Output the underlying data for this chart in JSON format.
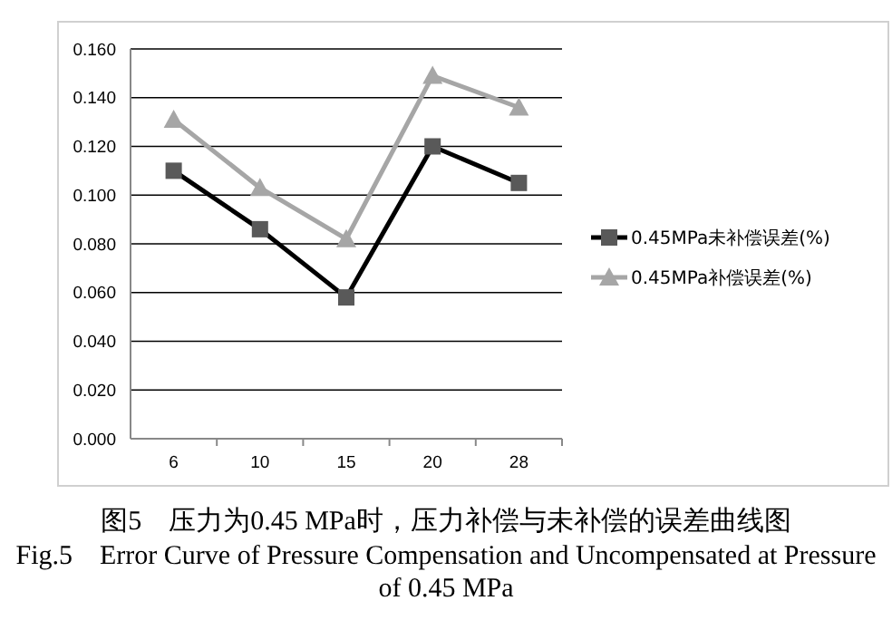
{
  "chart_data": {
    "type": "line",
    "categories": [
      "6",
      "10",
      "15",
      "20",
      "28"
    ],
    "series": [
      {
        "name": "0.45MPa未补偿误差(%)",
        "color": "#000000",
        "values": [
          0.11,
          0.086,
          0.058,
          0.12,
          0.105
        ],
        "marker": "square"
      },
      {
        "name": "0.45MPa补偿误差(%)",
        "color": "#a6a6a6",
        "values": [
          0.131,
          0.103,
          0.082,
          0.149,
          0.136
        ],
        "marker": "triangle"
      }
    ],
    "ylim": [
      0,
      0.16
    ],
    "yticks": [
      {
        "value": 0,
        "label": "0.000"
      },
      {
        "value": 0.02,
        "label": "0.020"
      },
      {
        "value": 0.04,
        "label": "0.040"
      },
      {
        "value": 0.06,
        "label": "0.060"
      },
      {
        "value": 0.08,
        "label": "0.080"
      },
      {
        "value": 0.1,
        "label": "0.100"
      },
      {
        "value": 0.12,
        "label": "0.120"
      },
      {
        "value": 0.14,
        "label": "0.140"
      },
      {
        "value": 0.16,
        "label": "0.160"
      }
    ],
    "grid": "y",
    "legend": "right",
    "annotations": [
      "图5　压力为0.45 MPa时，压力补偿与未补偿的误差曲线图",
      "Fig.5　Error Curve of Pressure Compensation and Uncompensated at Pressure of 0.45 MPa"
    ]
  }
}
